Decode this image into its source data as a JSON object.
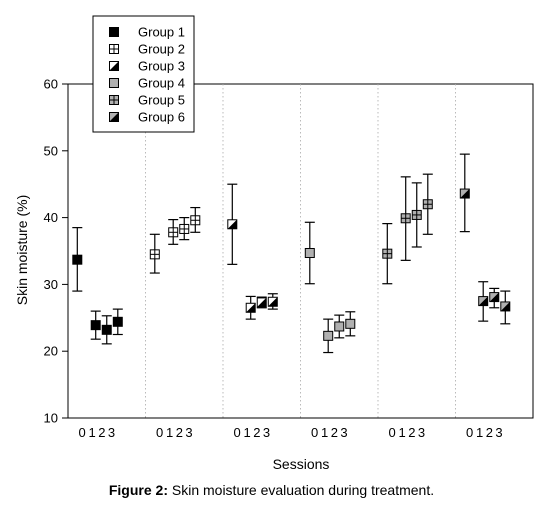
{
  "chart_data": {
    "type": "scatter",
    "xlabel": "Sessions",
    "ylabel": "Skin moisture  (%)",
    "ylim": [
      10,
      60
    ],
    "yticks": [
      10,
      20,
      30,
      40,
      50,
      60
    ],
    "session_labels": [
      "0",
      "1",
      "2",
      "3"
    ],
    "legend_position": "top-left",
    "grid": false,
    "series": [
      {
        "name": "Group 1",
        "marker": "solid",
        "color": "#000000",
        "values": [
          33.7,
          23.9,
          23.2,
          24.4
        ],
        "lower": [
          29.0,
          21.8,
          21.1,
          22.5
        ],
        "upper": [
          38.5,
          26.0,
          25.3,
          26.3
        ]
      },
      {
        "name": "Group 2",
        "marker": "crosshatch",
        "color": "#ffffff",
        "values": [
          34.5,
          37.8,
          38.3,
          39.6
        ],
        "lower": [
          31.7,
          36.0,
          36.7,
          37.8
        ],
        "upper": [
          37.5,
          39.7,
          40.0,
          41.5
        ]
      },
      {
        "name": "Group 3",
        "marker": "half-black",
        "color": "#000000",
        "values": [
          39.0,
          26.5,
          27.3,
          27.4
        ],
        "lower": [
          33.0,
          24.8,
          26.5,
          26.3
        ],
        "upper": [
          45.0,
          28.2,
          28.1,
          28.6
        ]
      },
      {
        "name": "Group 4",
        "marker": "gray",
        "color": "#b0b0b0",
        "values": [
          34.7,
          22.3,
          23.7,
          24.1
        ],
        "lower": [
          30.1,
          19.8,
          22.0,
          22.3
        ],
        "upper": [
          39.3,
          24.8,
          25.4,
          25.9
        ]
      },
      {
        "name": "Group 5",
        "marker": "gray-crosshatch",
        "color": "#b0b0b0",
        "values": [
          34.6,
          39.9,
          40.4,
          42.0
        ],
        "lower": [
          30.1,
          33.6,
          35.6,
          37.5
        ],
        "upper": [
          39.1,
          46.1,
          45.2,
          46.5
        ]
      },
      {
        "name": "Group 6",
        "marker": "half-gray",
        "color": "#b0b0b0",
        "values": [
          43.6,
          27.5,
          28.1,
          26.7
        ],
        "lower": [
          37.9,
          24.5,
          26.5,
          24.1
        ],
        "upper": [
          49.5,
          30.4,
          29.4,
          29.0
        ]
      }
    ]
  },
  "caption": {
    "prefix": "Figure 2:",
    "text": " Skin moisture evaluation during treatment."
  }
}
